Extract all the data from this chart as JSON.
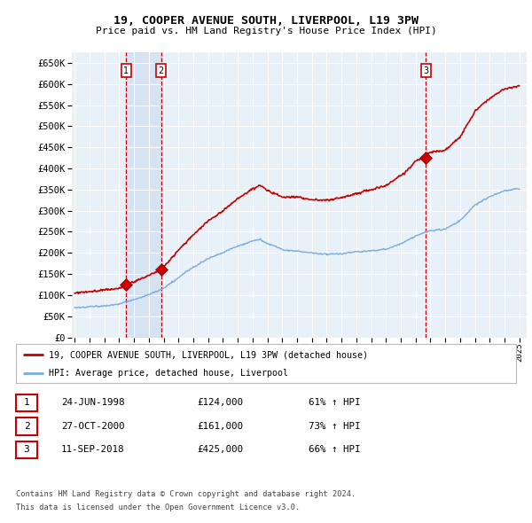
{
  "title1": "19, COOPER AVENUE SOUTH, LIVERPOOL, L19 3PW",
  "title2": "Price paid vs. HM Land Registry's House Price Index (HPI)",
  "ytick_values": [
    0,
    50000,
    100000,
    150000,
    200000,
    250000,
    300000,
    350000,
    400000,
    450000,
    500000,
    550000,
    600000,
    650000
  ],
  "ylim": [
    0,
    675000
  ],
  "xlim_start": 1994.8,
  "xlim_end": 2025.5,
  "background_chart": "#E8F0F8",
  "grid_color": "#FFFFFF",
  "sale_marker_color": "#CC0000",
  "hpi_line_color": "#7AABDC",
  "price_line_color": "#CC0000",
  "sale_dates": [
    1998.48,
    2000.82,
    2018.69
  ],
  "sale_prices": [
    124000,
    161000,
    425000
  ],
  "sale_labels": [
    "1",
    "2",
    "3"
  ],
  "transaction_info": [
    {
      "label": "1",
      "date": "24-JUN-1998",
      "price": "£124,000",
      "hpi": "61% ↑ HPI"
    },
    {
      "label": "2",
      "date": "27-OCT-2000",
      "price": "£161,000",
      "hpi": "73% ↑ HPI"
    },
    {
      "label": "3",
      "date": "11-SEP-2018",
      "price": "£425,000",
      "hpi": "66% ↑ HPI"
    }
  ],
  "legend_line1": "19, COOPER AVENUE SOUTH, LIVERPOOL, L19 3PW (detached house)",
  "legend_line2": "HPI: Average price, detached house, Liverpool",
  "footnote1": "Contains HM Land Registry data © Crown copyright and database right 2024.",
  "footnote2": "This data is licensed under the Open Government Licence v3.0.",
  "xtick_years": [
    1995,
    1996,
    1997,
    1998,
    1999,
    2000,
    2001,
    2002,
    2003,
    2004,
    2005,
    2006,
    2007,
    2008,
    2009,
    2010,
    2011,
    2012,
    2013,
    2014,
    2015,
    2016,
    2017,
    2018,
    2019,
    2020,
    2021,
    2022,
    2023,
    2024,
    2025
  ]
}
